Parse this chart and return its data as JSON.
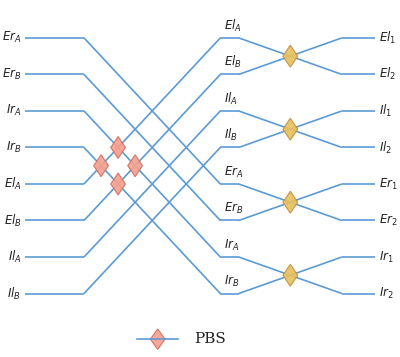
{
  "fig_width": 4.0,
  "fig_height": 3.57,
  "dpi": 100,
  "bg_color": "#ffffff",
  "line_color": "#5b9bd5",
  "line_width": 1.2,
  "left_labels": [
    "$Er_A$",
    "$Er_B$",
    "$Ir_A$",
    "$Ir_B$",
    "$El_A$",
    "$El_B$",
    "$Il_A$",
    "$Il_B$"
  ],
  "mid_labels": [
    "$El_A$",
    "$El_B$",
    "$Il_A$",
    "$Il_B$",
    "$Er_A$",
    "$Er_B$",
    "$Ir_A$",
    "$Ir_B$"
  ],
  "right_labels": [
    "$El_1$",
    "$El_2$",
    "$Il_1$",
    "$Il_2$",
    "$Er_1$",
    "$Er_2$",
    "$Ir_1$",
    "$Ir_2$"
  ],
  "xl": 0.02,
  "xml": 0.18,
  "xmr": 0.55,
  "xmr2": 0.6,
  "xcross2": 0.72,
  "xr": 0.88,
  "xend": 0.97,
  "left_y": [
    7.5,
    6.5,
    5.5,
    4.5,
    3.5,
    2.5,
    1.5,
    0.5
  ],
  "mid_y": [
    7.5,
    6.5,
    5.5,
    4.5,
    3.5,
    2.5,
    1.5,
    0.5
  ],
  "right_y": [
    7.5,
    6.5,
    5.5,
    4.5,
    3.5,
    2.5,
    1.5,
    0.5
  ],
  "left_to_mid": [
    4,
    5,
    6,
    7,
    0,
    1,
    2,
    3
  ],
  "mid_to_right": [
    1,
    0,
    3,
    2,
    5,
    4,
    7,
    6
  ],
  "pbs1_color": "#f5a090",
  "pbs1_ec": "#d07060",
  "pbs2_color": "#e8c060",
  "pbs2_ec": "#c09040",
  "legend_diamond_color": "#f5a090",
  "legend_diamond_ec": "#d07060",
  "legend_label": "PBS",
  "legend_fontsize": 11
}
